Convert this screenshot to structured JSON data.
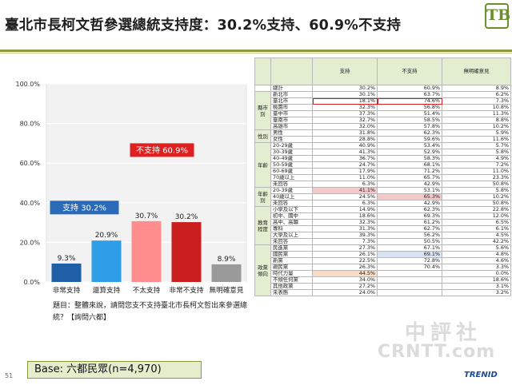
{
  "title": "臺北市長柯文哲參選總統支持度：30.2%支持、60.9%不支持",
  "logo_text": "TB",
  "chart_data": {
    "type": "bar",
    "categories": [
      "非常支持",
      "還算支持",
      "不太支持",
      "非常不支持",
      "無明確意見"
    ],
    "values": [
      9.3,
      20.9,
      30.7,
      30.2,
      8.9
    ],
    "value_labels": [
      "9.3%",
      "20.9%",
      "30.7%",
      "30.2%",
      "8.9%"
    ],
    "colors": [
      "#1f5fa8",
      "#2e9fe6",
      "#ff8d8d",
      "#c81e1e",
      "#9a9a9a"
    ],
    "ylim": [
      0,
      100
    ],
    "yticks": [
      0,
      20,
      40,
      60,
      80,
      100
    ],
    "ytick_labels": [
      "0.0%",
      "20.0%",
      "40.0%",
      "60.0%",
      "80.0%",
      "100.0%"
    ],
    "annotations": [
      {
        "text": "支持 30.2%",
        "color": "#2a6ab8"
      },
      {
        "text": "不支持 60.9%",
        "color": "#e02020"
      }
    ]
  },
  "question": "題目：整體來說，請問您支不支持臺北市長柯文哲出來參選總統？【詢問六都】",
  "base": "Base: 六都民眾(n=4,970)",
  "page_number": "51",
  "footer_logo": "TRENID",
  "watermark": {
    "line1": "中評社",
    "line2": "CRNTT.com"
  },
  "table": {
    "headers": [
      "",
      "",
      "支持",
      "不支持",
      "無明確意見"
    ],
    "total": {
      "label": "總計",
      "values": [
        "30.2%",
        "60.9%",
        "8.9%"
      ]
    },
    "groups": [
      {
        "name": "縣市別",
        "rows": [
          {
            "label": "新北市",
            "values": [
              "30.1%",
              "63.7%",
              "6.2%"
            ]
          },
          {
            "label": "臺北市",
            "values": [
              "18.1%",
              "74.6%",
              "7.3%"
            ],
            "hl": "box"
          },
          {
            "label": "桃園市",
            "values": [
              "32.3%",
              "56.8%",
              "10.8%"
            ]
          },
          {
            "label": "臺中市",
            "values": [
              "37.3%",
              "51.4%",
              "11.3%"
            ]
          },
          {
            "label": "臺南市",
            "values": [
              "32.7%",
              "58.5%",
              "8.8%"
            ]
          },
          {
            "label": "高雄市",
            "values": [
              "32.0%",
              "57.8%",
              "10.2%"
            ]
          }
        ]
      },
      {
        "name": "性別",
        "rows": [
          {
            "label": "男性",
            "values": [
              "31.8%",
              "62.3%",
              "5.9%"
            ]
          },
          {
            "label": "女性",
            "values": [
              "28.8%",
              "59.6%",
              "11.6%"
            ]
          }
        ]
      },
      {
        "name": "年齡",
        "rows": [
          {
            "label": "20-29歲",
            "values": [
              "40.9%",
              "53.4%",
              "5.7%"
            ]
          },
          {
            "label": "30-39歲",
            "values": [
              "41.3%",
              "52.9%",
              "5.8%"
            ]
          },
          {
            "label": "40-49歲",
            "values": [
              "36.7%",
              "58.3%",
              "4.9%"
            ]
          },
          {
            "label": "50-59歲",
            "values": [
              "24.7%",
              "68.1%",
              "7.2%"
            ]
          },
          {
            "label": "60-69歲",
            "values": [
              "17.9%",
              "71.2%",
              "11.0%"
            ]
          },
          {
            "label": "70歲以上",
            "values": [
              "11.0%",
              "65.7%",
              "23.3%"
            ]
          },
          {
            "label": "未回答",
            "values": [
              "6.3%",
              "42.9%",
              "50.8%"
            ]
          }
        ]
      },
      {
        "name": "年齡別",
        "rows": [
          {
            "label": "20-39歲",
            "values": [
              "41.1%",
              "53.1%",
              "5.8%"
            ],
            "hl": "red"
          },
          {
            "label": "40歲以上",
            "values": [
              "24.5%",
              "65.3%",
              "10.2%"
            ],
            "hl": "red2"
          },
          {
            "label": "未回答",
            "values": [
              "6.3%",
              "42.9%",
              "50.8%"
            ]
          }
        ]
      },
      {
        "name": "教育程度",
        "rows": [
          {
            "label": "小學及以下",
            "values": [
              "14.9%",
              "62.3%",
              "22.8%"
            ]
          },
          {
            "label": "初中、國中",
            "values": [
              "18.6%",
              "69.3%",
              "12.0%"
            ]
          },
          {
            "label": "高中、高職",
            "values": [
              "32.3%",
              "61.2%",
              "6.5%"
            ]
          },
          {
            "label": "專科",
            "values": [
              "31.3%",
              "62.7%",
              "6.1%"
            ]
          },
          {
            "label": "大學及以上",
            "values": [
              "39.3%",
              "56.2%",
              "4.5%"
            ]
          },
          {
            "label": "未回答",
            "values": [
              "7.3%",
              "50.5%",
              "42.2%"
            ]
          }
        ]
      },
      {
        "name": "政黨傾向",
        "rows": [
          {
            "label": "民進黨",
            "values": [
              "27.3%",
              "67.1%",
              "5.6%"
            ]
          },
          {
            "label": "國民黨",
            "values": [
              "26.1%",
              "69.1%",
              "4.8%"
            ],
            "hl": "blue"
          },
          {
            "label": "新黨",
            "values": [
              "22.5%",
              "72.8%",
              "4.6%"
            ]
          },
          {
            "label": "親民黨",
            "values": [
              "26.3%",
              "70.4%",
              "3.3%"
            ]
          },
          {
            "label": "時代力量",
            "values": [
              "44.5%",
              "",
              "0.0%"
            ],
            "hl": "peach"
          },
          {
            "label": "不傾任何黨",
            "values": [
              "34.0%",
              "",
              "18.6%"
            ]
          },
          {
            "label": "其他政黨",
            "values": [
              "27.2%",
              "",
              "3.1%"
            ]
          },
          {
            "label": "未表態",
            "values": [
              "24.0%",
              "",
              "3.2%"
            ]
          }
        ]
      }
    ]
  }
}
